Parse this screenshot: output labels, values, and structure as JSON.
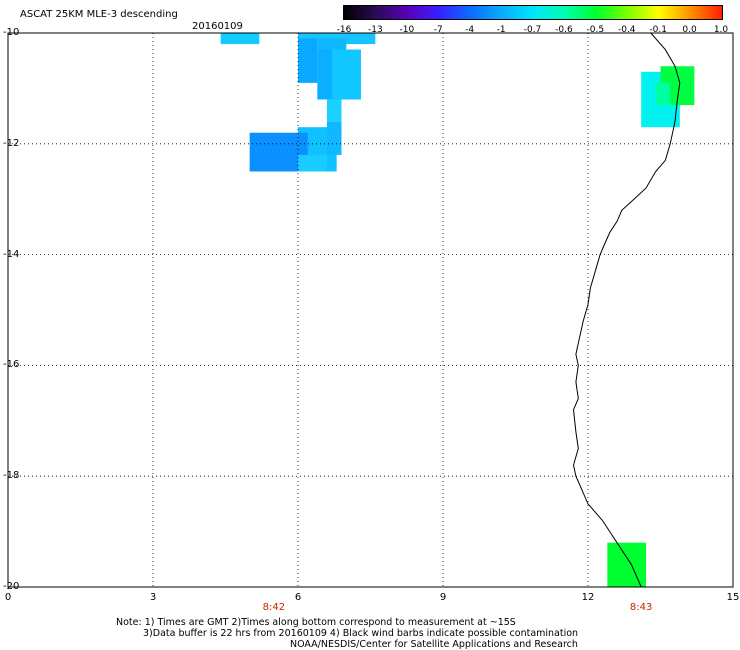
{
  "header": {
    "title": "ASCAT 25KM MLE-3 descending",
    "date": "20160109"
  },
  "colorbar": {
    "labels": [
      "-16",
      "-13",
      "-10",
      "-7",
      "-4",
      "-1",
      "-0.7",
      "-0.6",
      "-0.5",
      "-0.4",
      "-0.1",
      "0.0",
      "1.0"
    ],
    "colors": [
      "#000000",
      "#2b0a56",
      "#5a00b8",
      "#3a1fff",
      "#0a6cff",
      "#0aaaff",
      "#00e5ff",
      "#00ffb0",
      "#00ff30",
      "#7cff00",
      "#ffff00",
      "#ff9000",
      "#ff2000"
    ]
  },
  "axes": {
    "y_ticks": [
      "-10",
      "-12",
      "-14",
      "-16",
      "-18",
      "-20"
    ],
    "x_ticks": [
      "0",
      "3",
      "6",
      "9",
      "12",
      "15"
    ],
    "x_range": [
      0,
      15
    ],
    "y_range": [
      -10,
      -20
    ],
    "grid": "dotted"
  },
  "times": [
    {
      "label": "8:42",
      "lon": 5.5
    },
    {
      "label": "8:43",
      "lon": 13.1
    }
  ],
  "cells": [
    {
      "lon0": 4.4,
      "lon1": 5.2,
      "lat0": -10.0,
      "lat1": -10.2,
      "color": "#11ccff"
    },
    {
      "lon0": 6.0,
      "lon1": 7.6,
      "lat0": -10.0,
      "lat1": -10.2,
      "color": "#18c4ff"
    },
    {
      "lon0": 6.0,
      "lon1": 6.4,
      "lat0": -10.1,
      "lat1": -10.9,
      "color": "#0aa8ff"
    },
    {
      "lon0": 6.4,
      "lon1": 7.0,
      "lat0": -10.1,
      "lat1": -10.9,
      "color": "#10b8ff"
    },
    {
      "lon0": 6.4,
      "lon1": 7.3,
      "lat0": -10.3,
      "lat1": -11.2,
      "color": "#0ab0ff"
    },
    {
      "lon0": 6.7,
      "lon1": 7.3,
      "lat0": -10.3,
      "lat1": -11.2,
      "color": "#12c6ff"
    },
    {
      "lon0": 6.6,
      "lon1": 6.9,
      "lat0": -11.2,
      "lat1": -11.6,
      "color": "#1ad0ff"
    },
    {
      "lon0": 6.0,
      "lon1": 6.8,
      "lat0": -11.7,
      "lat1": -12.5,
      "color": "#10c0ff"
    },
    {
      "lon0": 6.6,
      "lon1": 6.9,
      "lat0": -11.6,
      "lat1": -12.2,
      "color": "#10b8ff"
    },
    {
      "lon0": 5.0,
      "lon1": 6.2,
      "lat0": -11.8,
      "lat1": -12.5,
      "color": "#0a90ff"
    },
    {
      "lon0": 6.0,
      "lon1": 6.6,
      "lat0": -12.2,
      "lat1": -12.5,
      "color": "#18ccff"
    },
    {
      "lon0": 13.1,
      "lon1": 13.9,
      "lat0": -10.7,
      "lat1": -11.7,
      "color": "#00f2ee"
    },
    {
      "lon0": 13.5,
      "lon1": 14.2,
      "lat0": -10.6,
      "lat1": -11.3,
      "color": "#00ff40"
    },
    {
      "lon0": 13.4,
      "lon1": 13.7,
      "lat0": -10.9,
      "lat1": -11.3,
      "color": "#00ffa0"
    },
    {
      "lon0": 12.4,
      "lon1": 13.2,
      "lat0": -19.2,
      "lat1": -20.0,
      "color": "#00ff30"
    }
  ],
  "coastline": [
    [
      13.3,
      -10.0
    ],
    [
      13.6,
      -10.3
    ],
    [
      13.8,
      -10.6
    ],
    [
      13.9,
      -10.9
    ],
    [
      13.85,
      -11.2
    ],
    [
      13.8,
      -11.6
    ],
    [
      13.7,
      -12.0
    ],
    [
      13.6,
      -12.3
    ],
    [
      13.4,
      -12.5
    ],
    [
      13.2,
      -12.8
    ],
    [
      12.95,
      -13.0
    ],
    [
      12.7,
      -13.2
    ],
    [
      12.6,
      -13.4
    ],
    [
      12.45,
      -13.6
    ],
    [
      12.35,
      -13.8
    ],
    [
      12.25,
      -14.0
    ],
    [
      12.15,
      -14.3
    ],
    [
      12.05,
      -14.6
    ],
    [
      12.0,
      -14.9
    ],
    [
      11.9,
      -15.2
    ],
    [
      11.8,
      -15.6
    ],
    [
      11.75,
      -15.8
    ],
    [
      11.8,
      -16.0
    ],
    [
      11.75,
      -16.3
    ],
    [
      11.8,
      -16.6
    ],
    [
      11.7,
      -16.8
    ],
    [
      11.75,
      -17.2
    ],
    [
      11.8,
      -17.5
    ],
    [
      11.7,
      -17.8
    ],
    [
      11.75,
      -18.0
    ],
    [
      11.85,
      -18.2
    ],
    [
      12.0,
      -18.5
    ],
    [
      12.3,
      -18.8
    ],
    [
      12.6,
      -19.2
    ],
    [
      12.9,
      -19.6
    ],
    [
      13.1,
      -20.0
    ]
  ],
  "notes": [
    "Note: 1) Times are GMT 2)Times along bottom correspond to measurement at ~15S",
    "3)Data buffer is 22 hrs from 20160109 4) Black wind barbs indicate possible contamination",
    "NOAA/NESDIS/Center for Satellite Applications and Research"
  ]
}
